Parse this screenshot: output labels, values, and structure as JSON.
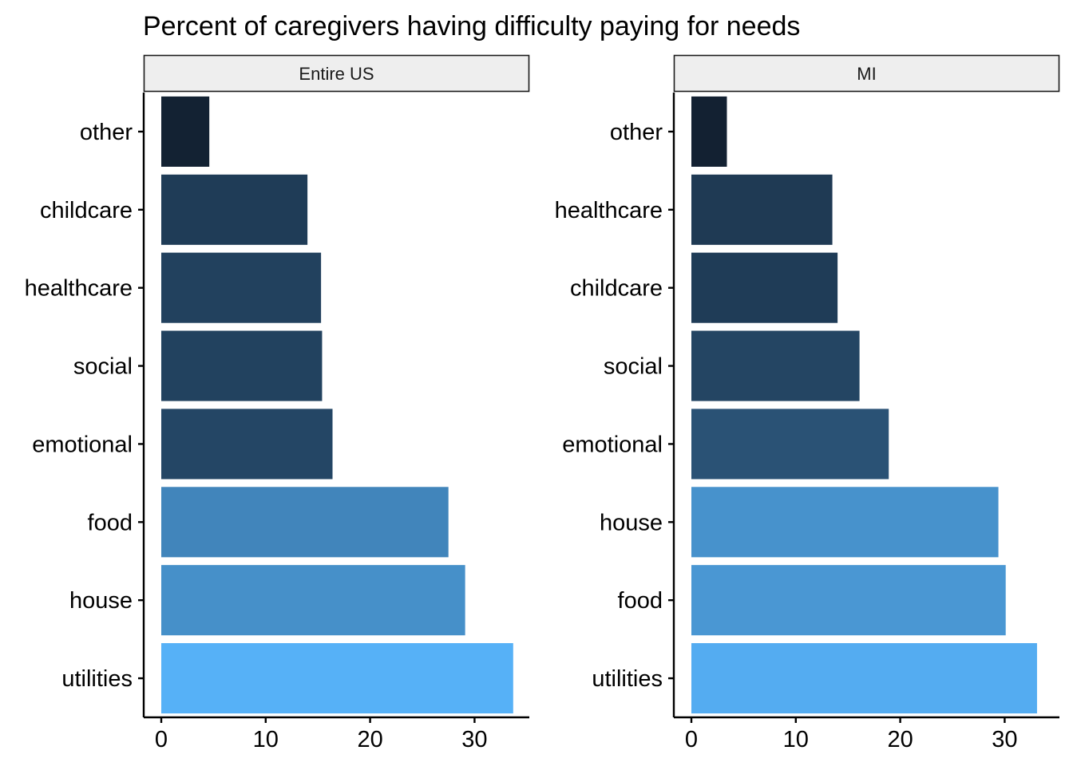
{
  "chart_data": {
    "type": "bar",
    "orientation": "horizontal",
    "title": "Percent of caregivers having difficulty paying for needs",
    "xlim": [
      0,
      35
    ],
    "x_ticks": [
      0,
      10,
      20,
      30
    ],
    "grid": false,
    "panels": [
      {
        "name": "Entire US",
        "categories": [
          "other",
          "childcare",
          "healthcare",
          "social",
          "emotional",
          "food",
          "house",
          "utilities"
        ],
        "values": [
          4.6,
          14.0,
          15.3,
          15.4,
          16.4,
          27.5,
          29.1,
          33.7
        ]
      },
      {
        "name": "MI",
        "categories": [
          "other",
          "healthcare",
          "childcare",
          "social",
          "emotional",
          "house",
          "food",
          "utilities"
        ],
        "values": [
          3.4,
          13.5,
          14.0,
          16.1,
          18.9,
          29.4,
          30.1,
          33.1
        ]
      }
    ],
    "fill_scale": {
      "low_color": "#132132",
      "high_color": "#56b1f7"
    },
    "panel_strip_fill": "#eeeeee"
  }
}
